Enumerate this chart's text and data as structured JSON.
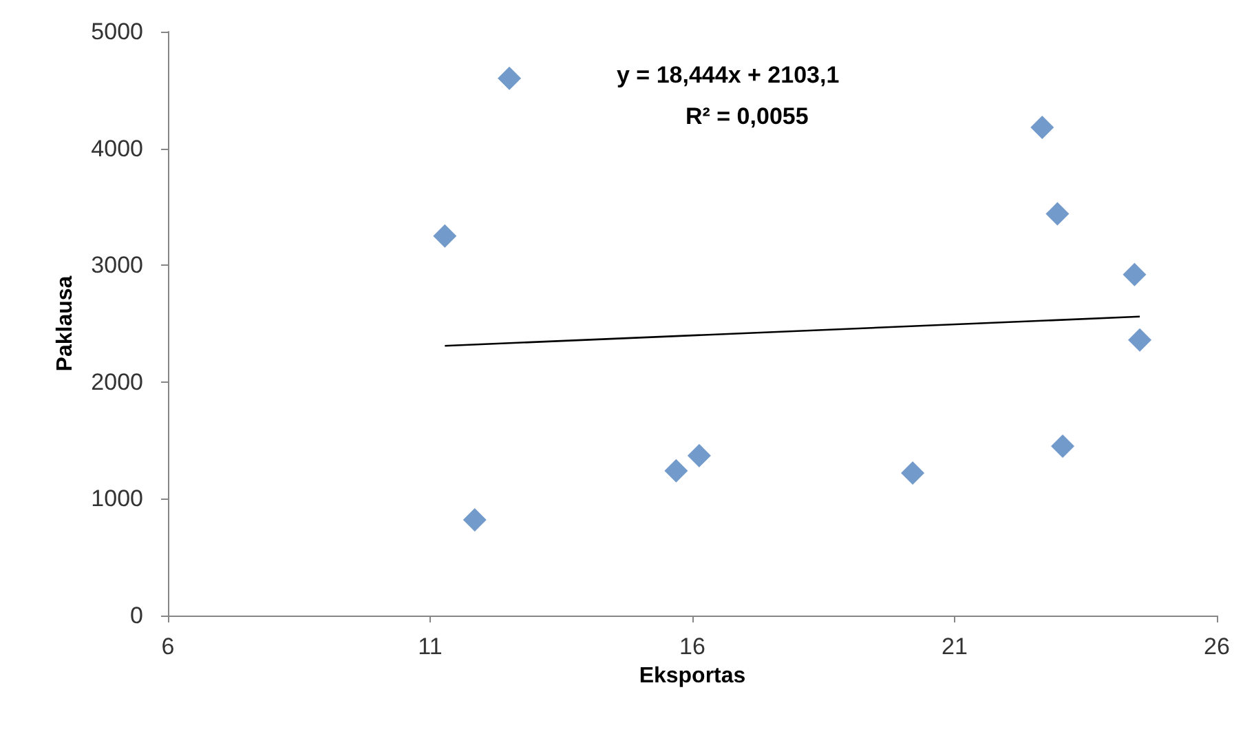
{
  "chart_data": {
    "type": "scatter",
    "xlabel": "Eksportas",
    "ylabel": "Paklausa",
    "marker": "diamond",
    "grid": false,
    "annotations": [
      "y = 18,444x + 2103,1",
      "R² = 0,0055"
    ],
    "xlim": [
      6,
      26
    ],
    "xticks": [
      6,
      11,
      16,
      21,
      26
    ],
    "ylim": [
      0,
      5000
    ],
    "yticks": [
      0,
      1000,
      2000,
      3000,
      4000,
      5000
    ],
    "series": [
      {
        "color": "#4f81bd",
        "x": [
          11.28,
          12.51,
          11.85,
          15.69,
          16.13,
          20.2,
          22.67,
          22.96,
          23.06,
          24.43,
          24.53
        ],
        "values": [
          3250,
          4600,
          820,
          1240,
          1370,
          1220,
          4180,
          3440,
          1450,
          2920,
          2360
        ]
      },
      {
        "type": "line",
        "color": "#000000",
        "marker": "none",
        "x": [
          11.28,
          24.53
        ],
        "values": [
          2310,
          2560
        ]
      }
    ]
  }
}
